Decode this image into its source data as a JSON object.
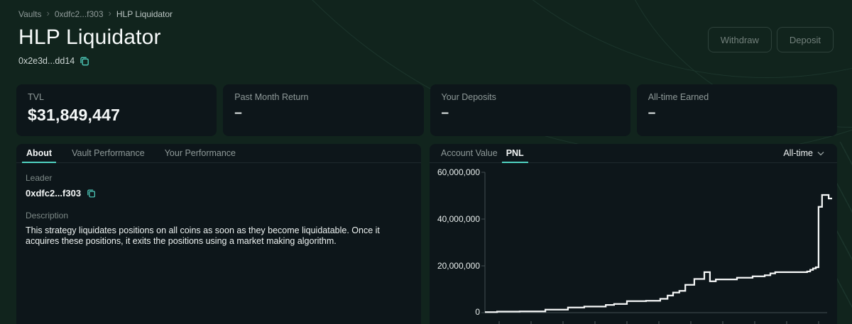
{
  "header": {
    "breadcrumb": {
      "items": [
        "Vaults",
        "0xdfc2...f303",
        "HLP Liquidator"
      ],
      "separator": "›"
    },
    "title": "HLP Liquidator",
    "vault_address": "0x2e3d...dd14",
    "withdraw_label": "Withdraw",
    "deposit_label": "Deposit"
  },
  "stats": [
    {
      "label": "TVL",
      "value": "$31,849,447"
    },
    {
      "label": "Past Month Return",
      "value": "–"
    },
    {
      "label": "Your Deposits",
      "value": "–"
    },
    {
      "label": "All-time Earned",
      "value": "–"
    }
  ],
  "about_panel": {
    "tabs": [
      {
        "label": "About"
      },
      {
        "label": "Vault Performance"
      },
      {
        "label": "Your Performance"
      }
    ],
    "leader_label": "Leader",
    "leader_address": "0xdfc2...f303",
    "description_label": "Description",
    "description_text": "This strategy liquidates positions on all coins as soon as they become liquidatable. Once it acquires these positions, it exits the positions using a market making algorithm."
  },
  "chart_panel": {
    "tabs": [
      {
        "label": "Account Value"
      },
      {
        "label": "PNL"
      }
    ],
    "range_selected": "All-time"
  },
  "chart_data": {
    "type": "line",
    "style": "step-after",
    "title": "PNL (All-time)",
    "legend": "none",
    "grid": false,
    "ylim": [
      0,
      60000000
    ],
    "yticks": [
      0,
      20000000,
      40000000,
      60000000
    ],
    "ytick_labels": [
      "0",
      "20,000,000",
      "40,000,000",
      "60,000,000"
    ],
    "line_color": "#f5f7f7",
    "points_note": "x is fraction of plot width (All-time axis), y is PNL in USD",
    "points": [
      [
        0.0,
        200000
      ],
      [
        0.035,
        450000
      ],
      [
        0.1,
        550000
      ],
      [
        0.174,
        1300000
      ],
      [
        0.239,
        2200000
      ],
      [
        0.286,
        2600000
      ],
      [
        0.348,
        3300000
      ],
      [
        0.372,
        3700000
      ],
      [
        0.409,
        4900000
      ],
      [
        0.464,
        5100000
      ],
      [
        0.505,
        5900000
      ],
      [
        0.526,
        7300000
      ],
      [
        0.542,
        8600000
      ],
      [
        0.56,
        9300000
      ],
      [
        0.577,
        11900000
      ],
      [
        0.603,
        14400000
      ],
      [
        0.632,
        17300000
      ],
      [
        0.648,
        13400000
      ],
      [
        0.665,
        14200000
      ],
      [
        0.726,
        14900000
      ],
      [
        0.771,
        15500000
      ],
      [
        0.806,
        16000000
      ],
      [
        0.822,
        16800000
      ],
      [
        0.836,
        17300000
      ],
      [
        0.928,
        17600000
      ],
      [
        0.937,
        18300000
      ],
      [
        0.945,
        18900000
      ],
      [
        0.953,
        19400000
      ],
      [
        0.961,
        45200000
      ],
      [
        0.971,
        50300000
      ],
      [
        0.99,
        48800000
      ],
      [
        1.0,
        48800000
      ]
    ]
  },
  "colors": {
    "page_bg": "#11241d",
    "panel_bg": "#0d161a",
    "accent_teal": "#50d2c1",
    "text_primary": "#f4f7f7",
    "text_muted": "#8f9a99",
    "axis": "#434e52",
    "chart_line": "#f5f7f7"
  }
}
